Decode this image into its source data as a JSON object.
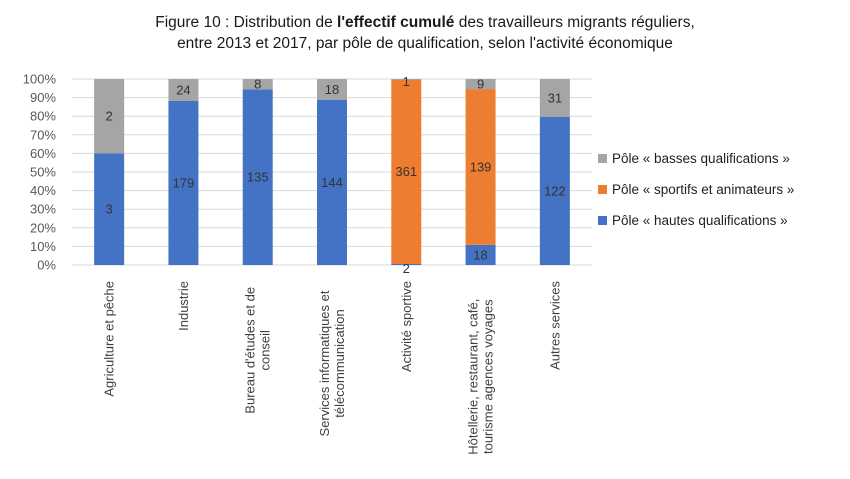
{
  "title": {
    "prefix": "Figure 10 : Distribution de ",
    "bold": "l'effectif cumulé",
    "suffix": " des travailleurs migrants réguliers,",
    "line2": "entre 2013 et 2017, par pôle de qualification, selon l'activité économique"
  },
  "chart_data": {
    "type": "bar",
    "stacked": "percent",
    "title": "Figure 10 : Distribution de l'effectif cumulé des travailleurs migrants réguliers, entre 2013 et 2017, par pôle de qualification, selon l'activité économique",
    "xlabel": "",
    "ylabel": "",
    "ylim": [
      0,
      100
    ],
    "yticks": [
      "0%",
      "10%",
      "20%",
      "30%",
      "40%",
      "50%",
      "60%",
      "70%",
      "80%",
      "90%",
      "100%"
    ],
    "grid": true,
    "legend_position": "right",
    "categories": [
      [
        "Agriculture et pêche"
      ],
      [
        "Industrie"
      ],
      [
        "Bureau d'études et de",
        "conseil"
      ],
      [
        "Services informatiques et",
        "télécommunication"
      ],
      [
        "Activité sportive"
      ],
      [
        "Hôtellerie, restaurant, café,",
        "tourisme agences voyages"
      ],
      [
        "Autres services"
      ]
    ],
    "series": [
      {
        "name": "Pôle « hautes qualifications »",
        "color": "#4472C4",
        "values": [
          3,
          179,
          135,
          144,
          2,
          18,
          122
        ]
      },
      {
        "name": "Pôle « sportifs et animateurs »",
        "color": "#ED7D31",
        "values": [
          0,
          0,
          0,
          0,
          361,
          139,
          0
        ]
      },
      {
        "name": "Pôle « basses qualifications »",
        "color": "#A5A5A5",
        "values": [
          2,
          24,
          8,
          18,
          1,
          9,
          31
        ]
      }
    ],
    "legend_order": [
      2,
      1,
      0
    ]
  }
}
